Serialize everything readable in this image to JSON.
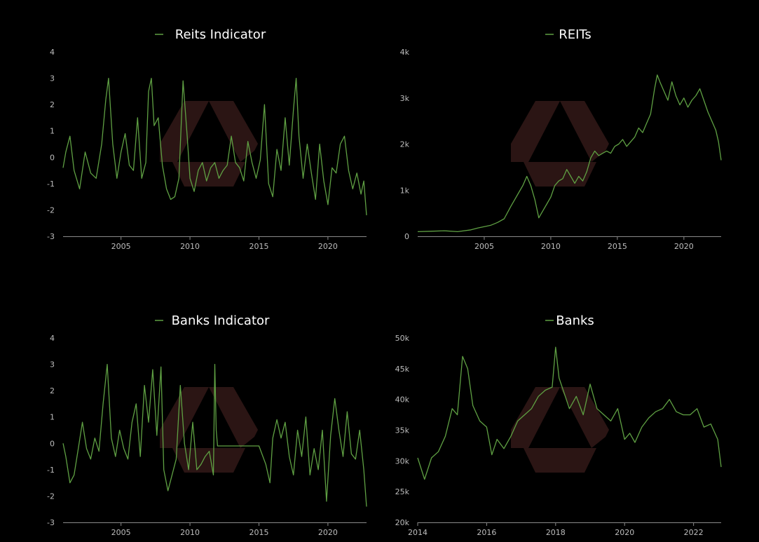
{
  "colors": {
    "background": "#000000",
    "series": "#5fa043",
    "watermark": "#3a1c1b",
    "text": "#ffffff",
    "tick": "#bdbdbd"
  },
  "watermark": {
    "icon": "hexagon-logo-watermark"
  },
  "chart_data": [
    {
      "type": "line",
      "title": "Reits Indicator",
      "legend": "top-center",
      "xlim": [
        2000.8,
        2022.8
      ],
      "ylim": [
        -3,
        4
      ],
      "xticks": [
        2005,
        2010,
        2015,
        2020
      ],
      "xtick_labels": [
        "2005",
        "2010",
        "2015",
        "2020"
      ],
      "yticks": [
        4,
        3,
        2,
        1,
        0,
        -1,
        -2,
        -3
      ],
      "ytick_labels": [
        "4",
        "3",
        "2",
        "1",
        "0",
        "-1",
        "-2",
        "-3"
      ],
      "series": [
        {
          "name": "Reits Indicator",
          "x": [
            2000.8,
            2001.0,
            2001.3,
            2001.6,
            2002.0,
            2002.4,
            2002.8,
            2003.2,
            2003.6,
            2003.9,
            2004.1,
            2004.4,
            2004.7,
            2005.0,
            2005.3,
            2005.6,
            2005.9,
            2006.2,
            2006.5,
            2006.8,
            2007.0,
            2007.2,
            2007.4,
            2007.7,
            2008.0,
            2008.3,
            2008.6,
            2008.9,
            2009.2,
            2009.5,
            2009.8,
            2010.0,
            2010.3,
            2010.6,
            2010.9,
            2011.2,
            2011.5,
            2011.8,
            2012.1,
            2012.4,
            2012.7,
            2013.0,
            2013.3,
            2013.6,
            2013.9,
            2014.2,
            2014.5,
            2014.8,
            2015.1,
            2015.4,
            2015.7,
            2016.0,
            2016.3,
            2016.6,
            2016.9,
            2017.2,
            2017.5,
            2017.7,
            2017.9,
            2018.2,
            2018.5,
            2018.8,
            2019.1,
            2019.4,
            2019.7,
            2020.0,
            2020.3,
            2020.6,
            2020.9,
            2021.2,
            2021.5,
            2021.8,
            2022.1,
            2022.4,
            2022.6,
            2022.8
          ],
          "y": [
            -0.4,
            0.2,
            0.8,
            -0.5,
            -1.2,
            0.2,
            -0.6,
            -0.8,
            0.5,
            2.2,
            3.0,
            0.5,
            -0.8,
            0.2,
            0.9,
            -0.3,
            -0.5,
            1.5,
            -0.8,
            -0.2,
            2.5,
            3.0,
            1.2,
            1.5,
            -0.3,
            -1.2,
            -1.6,
            -1.5,
            -0.8,
            2.9,
            0.8,
            -0.8,
            -1.3,
            -0.5,
            -0.2,
            -0.9,
            -0.4,
            -0.2,
            -0.8,
            -0.5,
            -0.3,
            0.8,
            -0.2,
            -0.4,
            -0.9,
            0.6,
            -0.2,
            -0.8,
            -0.1,
            2.0,
            -1.0,
            -1.5,
            0.3,
            -0.5,
            1.5,
            -0.3,
            1.8,
            3.0,
            0.8,
            -0.8,
            0.5,
            -0.6,
            -1.6,
            0.5,
            -0.9,
            -1.8,
            -0.4,
            -0.6,
            0.5,
            0.8,
            -0.5,
            -1.2,
            -0.6,
            -1.4,
            -0.9,
            -2.2
          ]
        }
      ]
    },
    {
      "type": "line",
      "title": "REITs",
      "legend": "top-center",
      "xlim": [
        2000.0,
        2022.8
      ],
      "ylim": [
        0,
        4000
      ],
      "xticks": [
        2005,
        2010,
        2015,
        2020
      ],
      "xtick_labels": [
        "2005",
        "2010",
        "2015",
        "2020"
      ],
      "yticks": [
        0,
        1000,
        2000,
        3000,
        4000
      ],
      "ytick_labels": [
        "0",
        "1k",
        "2k",
        "3k",
        "4k"
      ],
      "series": [
        {
          "name": "REITs",
          "x": [
            2000.0,
            2001.0,
            2002.0,
            2003.0,
            2004.0,
            2004.5,
            2005.0,
            2005.5,
            2006.0,
            2006.5,
            2007.0,
            2007.3,
            2007.6,
            2007.9,
            2008.2,
            2008.5,
            2008.8,
            2009.1,
            2009.4,
            2009.7,
            2010.0,
            2010.3,
            2010.6,
            2010.9,
            2011.2,
            2011.5,
            2011.8,
            2012.1,
            2012.4,
            2012.7,
            2013.0,
            2013.3,
            2013.6,
            2013.9,
            2014.2,
            2014.5,
            2014.8,
            2015.1,
            2015.4,
            2015.7,
            2016.0,
            2016.3,
            2016.6,
            2016.9,
            2017.2,
            2017.5,
            2017.8,
            2018.0,
            2018.2,
            2018.5,
            2018.8,
            2019.1,
            2019.4,
            2019.7,
            2020.0,
            2020.3,
            2020.6,
            2020.9,
            2021.2,
            2021.5,
            2021.8,
            2022.1,
            2022.4,
            2022.6,
            2022.8
          ],
          "y": [
            100,
            110,
            120,
            100,
            140,
            180,
            210,
            240,
            300,
            380,
            650,
            800,
            950,
            1100,
            1300,
            1100,
            800,
            400,
            550,
            700,
            850,
            1100,
            1200,
            1250,
            1450,
            1300,
            1150,
            1300,
            1200,
            1400,
            1700,
            1850,
            1750,
            1800,
            1850,
            1800,
            1950,
            2000,
            2100,
            1950,
            2050,
            2150,
            2350,
            2250,
            2450,
            2650,
            3200,
            3500,
            3350,
            3150,
            2950,
            3350,
            3050,
            2850,
            3000,
            2800,
            2950,
            3050,
            3200,
            2950,
            2700,
            2500,
            2300,
            2050,
            1650
          ]
        }
      ]
    },
    {
      "type": "line",
      "title": "Banks Indicator",
      "legend": "top-center",
      "xlim": [
        2000.8,
        2022.8
      ],
      "ylim": [
        -3,
        4
      ],
      "xticks": [
        2005,
        2010,
        2015,
        2020
      ],
      "xtick_labels": [
        "2005",
        "2010",
        "2015",
        "2020"
      ],
      "yticks": [
        4,
        3,
        2,
        1,
        0,
        -1,
        -2,
        -3
      ],
      "ytick_labels": [
        "4",
        "3",
        "2",
        "1",
        "0",
        "-1",
        "-2",
        "-3"
      ],
      "series": [
        {
          "name": "Banks Indicator",
          "x": [
            2000.8,
            2001.0,
            2001.3,
            2001.6,
            2001.9,
            2002.2,
            2002.5,
            2002.8,
            2003.1,
            2003.4,
            2003.7,
            2004.0,
            2004.3,
            2004.6,
            2004.9,
            2005.2,
            2005.5,
            2005.8,
            2006.1,
            2006.4,
            2006.7,
            2007.0,
            2007.3,
            2007.6,
            2007.9,
            2008.1,
            2008.4,
            2008.7,
            2009.0,
            2009.3,
            2009.6,
            2009.9,
            2010.2,
            2010.5,
            2010.8,
            2011.1,
            2011.4,
            2011.7,
            2011.8,
            2011.9,
            2012.0,
            2012.3,
            2013.0,
            2014.0,
            2015.0,
            2015.5,
            2015.8,
            2016.0,
            2016.3,
            2016.6,
            2016.9,
            2017.2,
            2017.5,
            2017.8,
            2018.1,
            2018.4,
            2018.7,
            2019.0,
            2019.3,
            2019.6,
            2019.9,
            2020.2,
            2020.5,
            2020.8,
            2021.1,
            2021.4,
            2021.7,
            2022.0,
            2022.3,
            2022.6,
            2022.8
          ],
          "y": [
            0.0,
            -0.5,
            -1.5,
            -1.2,
            -0.2,
            0.8,
            -0.2,
            -0.6,
            0.2,
            -0.3,
            1.5,
            3.0,
            0.2,
            -0.5,
            0.5,
            -0.2,
            -0.6,
            0.8,
            1.5,
            -0.5,
            2.2,
            0.8,
            2.8,
            0.3,
            2.9,
            -1.0,
            -1.8,
            -1.2,
            -0.6,
            2.2,
            0.0,
            -1.0,
            0.8,
            -1.0,
            -0.8,
            -0.5,
            -0.3,
            -1.2,
            3.0,
            0.5,
            -0.1,
            -0.1,
            -0.1,
            -0.1,
            -0.1,
            -0.8,
            -1.5,
            0.2,
            0.9,
            0.2,
            0.8,
            -0.5,
            -1.2,
            0.5,
            -0.5,
            1.0,
            -1.2,
            -0.2,
            -1.0,
            0.5,
            -2.2,
            0.3,
            1.7,
            0.5,
            -0.5,
            1.2,
            -0.4,
            -0.6,
            0.5,
            -1.0,
            -2.4
          ]
        }
      ]
    },
    {
      "type": "line",
      "title": "Banks",
      "legend": "top-center",
      "xlim": [
        2014.0,
        2022.8
      ],
      "ylim": [
        20000,
        50000
      ],
      "xticks": [
        2014,
        2016,
        2018,
        2020,
        2022
      ],
      "xtick_labels": [
        "2014",
        "2016",
        "2018",
        "2020",
        "2022"
      ],
      "yticks": [
        20000,
        25000,
        30000,
        35000,
        40000,
        45000,
        50000
      ],
      "ytick_labels": [
        "20k",
        "25k",
        "30k",
        "35k",
        "40k",
        "45k",
        "50k"
      ],
      "series": [
        {
          "name": "Banks",
          "x": [
            2014.0,
            2014.2,
            2014.4,
            2014.6,
            2014.8,
            2015.0,
            2015.15,
            2015.3,
            2015.45,
            2015.6,
            2015.8,
            2016.0,
            2016.15,
            2016.3,
            2016.5,
            2016.7,
            2016.9,
            2017.1,
            2017.3,
            2017.5,
            2017.7,
            2017.9,
            2018.0,
            2018.1,
            2018.25,
            2018.4,
            2018.6,
            2018.8,
            2019.0,
            2019.2,
            2019.4,
            2019.6,
            2019.8,
            2020.0,
            2020.15,
            2020.3,
            2020.5,
            2020.7,
            2020.9,
            2021.1,
            2021.3,
            2021.5,
            2021.7,
            2021.9,
            2022.1,
            2022.3,
            2022.5,
            2022.7,
            2022.8
          ],
          "y": [
            30500,
            27000,
            30500,
            31500,
            34000,
            38500,
            37500,
            47000,
            45000,
            39000,
            36500,
            35500,
            31000,
            33500,
            32000,
            34000,
            36500,
            37500,
            38500,
            40500,
            41500,
            42000,
            48500,
            43500,
            41000,
            38500,
            40500,
            37500,
            42500,
            38500,
            37500,
            36500,
            38500,
            33500,
            34500,
            33000,
            35500,
            37000,
            38000,
            38500,
            40000,
            38000,
            37500,
            37500,
            38500,
            35500,
            36000,
            33500,
            29000
          ]
        }
      ]
    }
  ]
}
